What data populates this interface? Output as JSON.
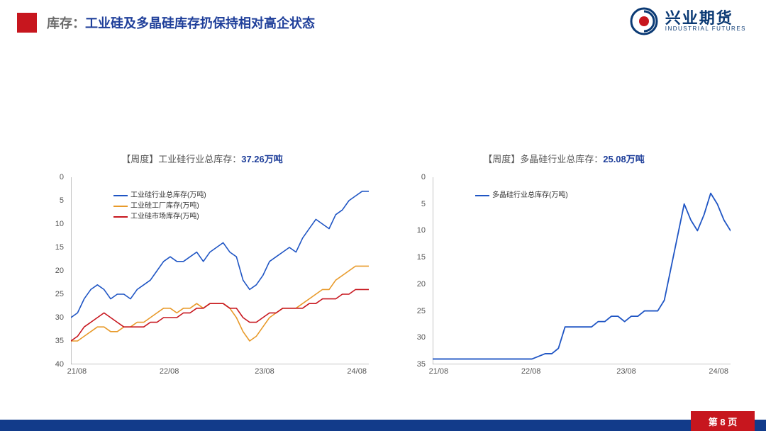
{
  "header": {
    "prefix": "库存：",
    "title": "工业硅及多晶硅库存扔保持相对高企状态"
  },
  "logo": {
    "cn": "兴业期货",
    "en": "INDUSTRIAL FUTURES",
    "mark_outer": "#0b3a74",
    "mark_inner": "#c7161e"
  },
  "footer": {
    "bar_color": "#123b8a",
    "page_label": "第 8 页",
    "tab_color": "#c7161e"
  },
  "chart_left": {
    "type": "line",
    "title_prefix": "【周度】工业硅行业总库存：",
    "title_value": "37.26万吨",
    "x_categories": [
      "21/08",
      "22/08",
      "23/08",
      "24/08"
    ],
    "x_positions_pct": [
      2,
      33,
      65,
      96
    ],
    "ylim": [
      0,
      40
    ],
    "ytick_step": 5,
    "axis_color": "#888",
    "series": [
      {
        "name": "工业硅行业总库存(万吨)",
        "color": "#1f55c4",
        "width": 1.6,
        "points": [
          10,
          11,
          14,
          16,
          17,
          16,
          14,
          15,
          15,
          14,
          16,
          17,
          18,
          20,
          22,
          23,
          22,
          22,
          23,
          24,
          22,
          24,
          25,
          26,
          24,
          23,
          18,
          16,
          17,
          19,
          22,
          23,
          24,
          25,
          24,
          27,
          29,
          31,
          30,
          29,
          32,
          33,
          35,
          36,
          37,
          37
        ]
      },
      {
        "name": "工业硅工厂库存(万吨)",
        "color": "#e89a2a",
        "width": 1.6,
        "points": [
          5,
          5,
          6,
          7,
          8,
          8,
          7,
          7,
          8,
          8,
          9,
          9,
          10,
          11,
          12,
          12,
          11,
          12,
          12,
          13,
          12,
          13,
          13,
          13,
          12,
          10,
          7,
          5,
          6,
          8,
          10,
          11,
          12,
          12,
          12,
          13,
          14,
          15,
          16,
          16,
          18,
          19,
          20,
          21,
          21,
          21
        ]
      },
      {
        "name": "工业硅市场库存(万吨)",
        "color": "#c7161e",
        "width": 1.6,
        "points": [
          5,
          6,
          8,
          9,
          10,
          11,
          10,
          9,
          8,
          8,
          8,
          8,
          9,
          9,
          10,
          10,
          10,
          11,
          11,
          12,
          12,
          13,
          13,
          13,
          12,
          12,
          10,
          9,
          9,
          10,
          11,
          11,
          12,
          12,
          12,
          12,
          13,
          13,
          14,
          14,
          14,
          15,
          15,
          16,
          16,
          16
        ]
      }
    ]
  },
  "chart_right": {
    "type": "line",
    "title_prefix": "【周度】多晶硅行业总库存：",
    "title_value": "25.08万吨",
    "x_categories": [
      "21/08",
      "22/08",
      "23/08",
      "24/08"
    ],
    "x_positions_pct": [
      2,
      33,
      65,
      96
    ],
    "ylim": [
      0,
      35
    ],
    "ytick_step": 5,
    "axis_color": "#888",
    "series": [
      {
        "name": "多晶硅行业总库存(万吨)",
        "color": "#1f55c4",
        "width": 1.8,
        "points": [
          1,
          1,
          1,
          1,
          1,
          1,
          1,
          1,
          1,
          1,
          1,
          1,
          1,
          1,
          1,
          1,
          1.5,
          2,
          2,
          3,
          7,
          7,
          7,
          7,
          7,
          8,
          8,
          9,
          9,
          8,
          9,
          9,
          10,
          10,
          10,
          12,
          18,
          24,
          30,
          27,
          25,
          28,
          32,
          30,
          27,
          25
        ]
      }
    ]
  }
}
